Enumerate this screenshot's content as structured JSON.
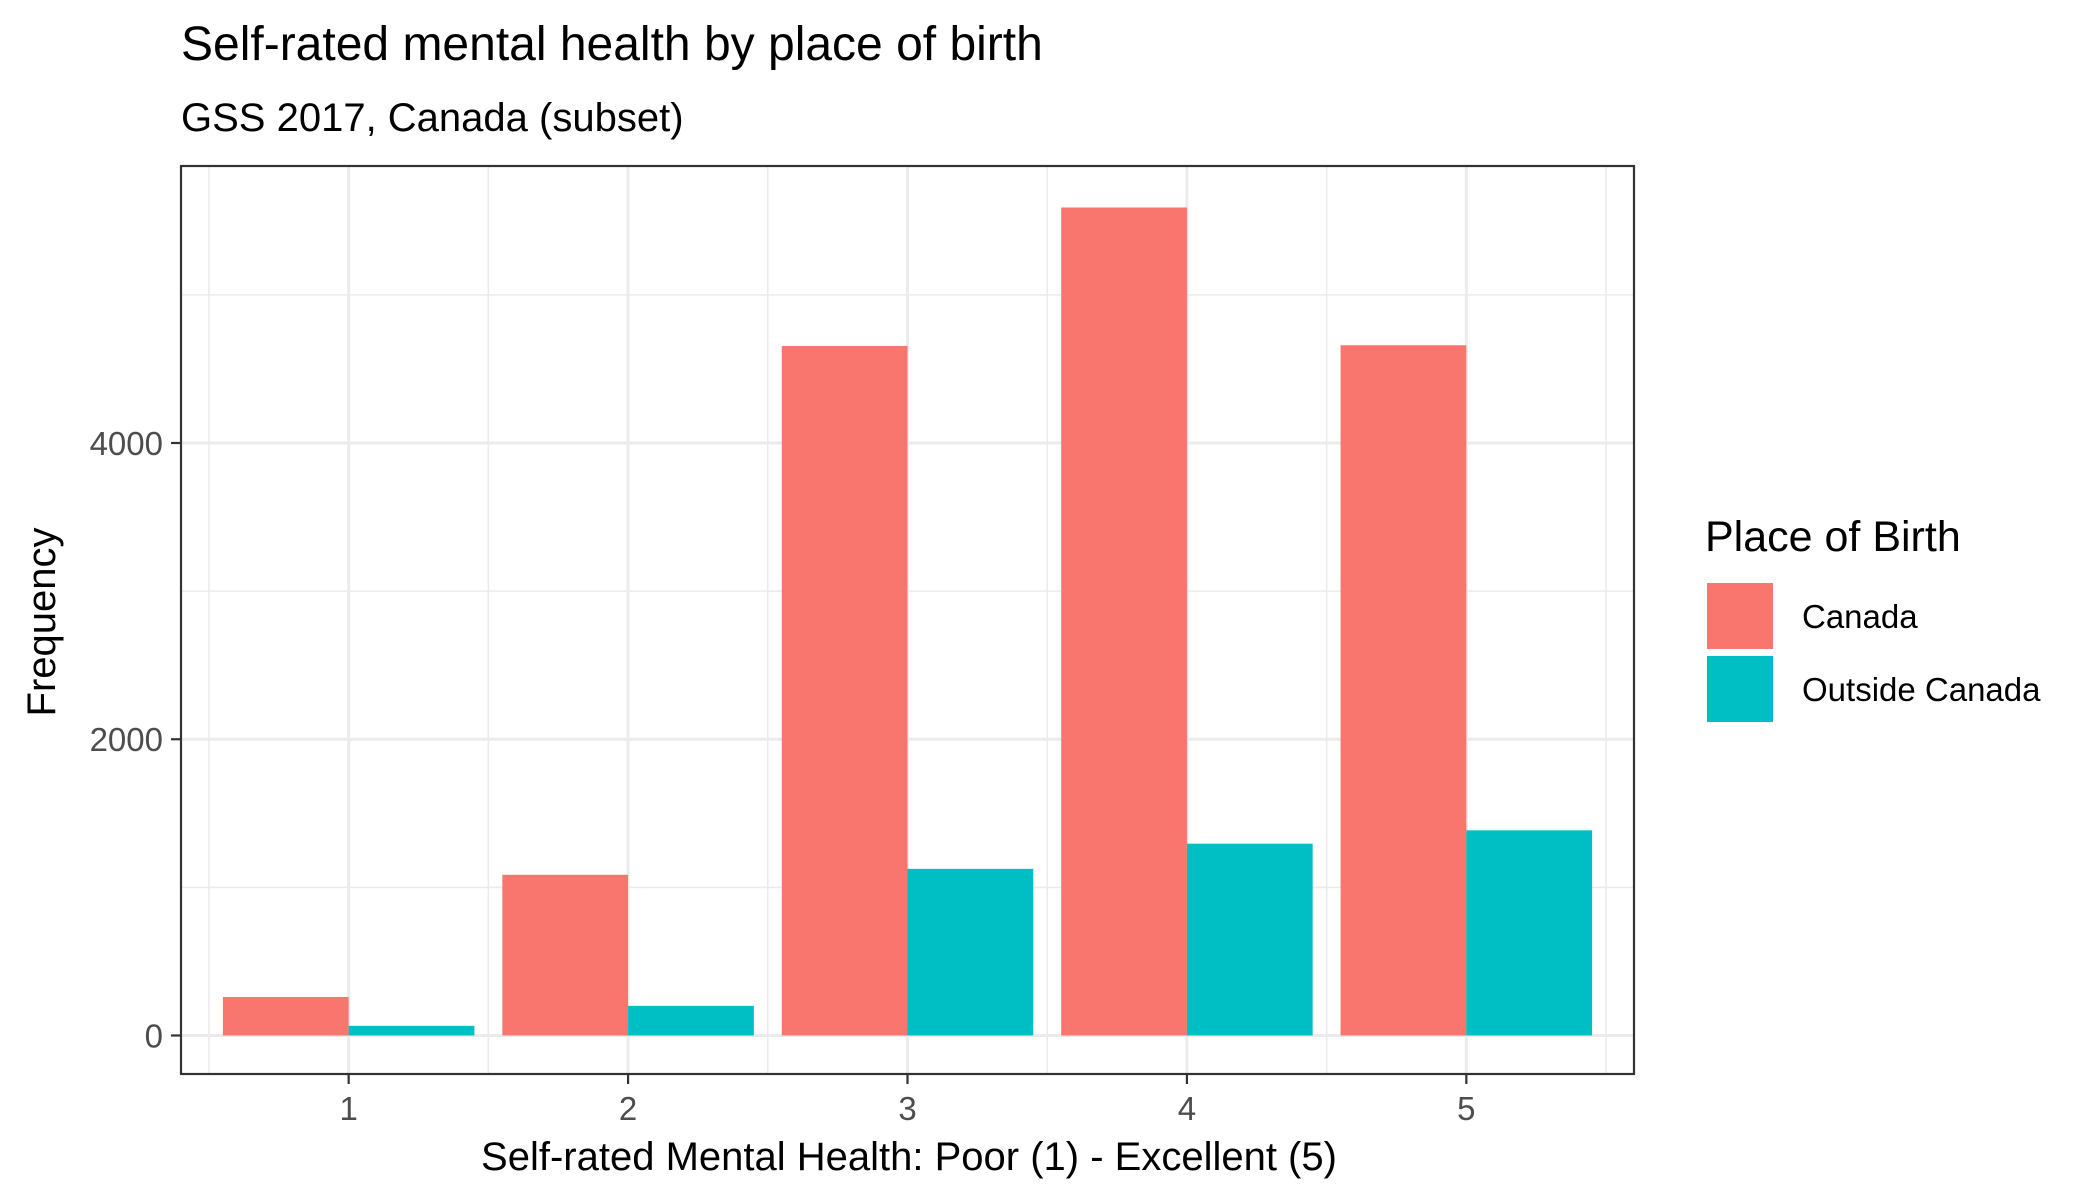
{
  "chart_data": {
    "type": "bar",
    "title": "Self-rated mental health by place of birth",
    "subtitle": "GSS 2017, Canada (subset)",
    "xlabel": "Self-rated Mental Health: Poor (1) - Excellent (5)",
    "ylabel": "Frequency",
    "categories": [
      "1",
      "2",
      "3",
      "4",
      "5"
    ],
    "series": [
      {
        "name": "Canada",
        "color": "#F8766D",
        "values": [
          260,
          1085,
          4655,
          5590,
          4660
        ]
      },
      {
        "name": "Outside Canada",
        "color": "#00BFC4",
        "values": [
          65,
          200,
          1125,
          1295,
          1385
        ]
      }
    ],
    "ylim": [
      -260,
      5870
    ],
    "yticks": [
      0,
      2000,
      4000
    ],
    "ytick_labels": [
      "0",
      "2000",
      "4000"
    ],
    "grid": true,
    "legend": {
      "title": "Place of Birth",
      "position": "right"
    }
  }
}
